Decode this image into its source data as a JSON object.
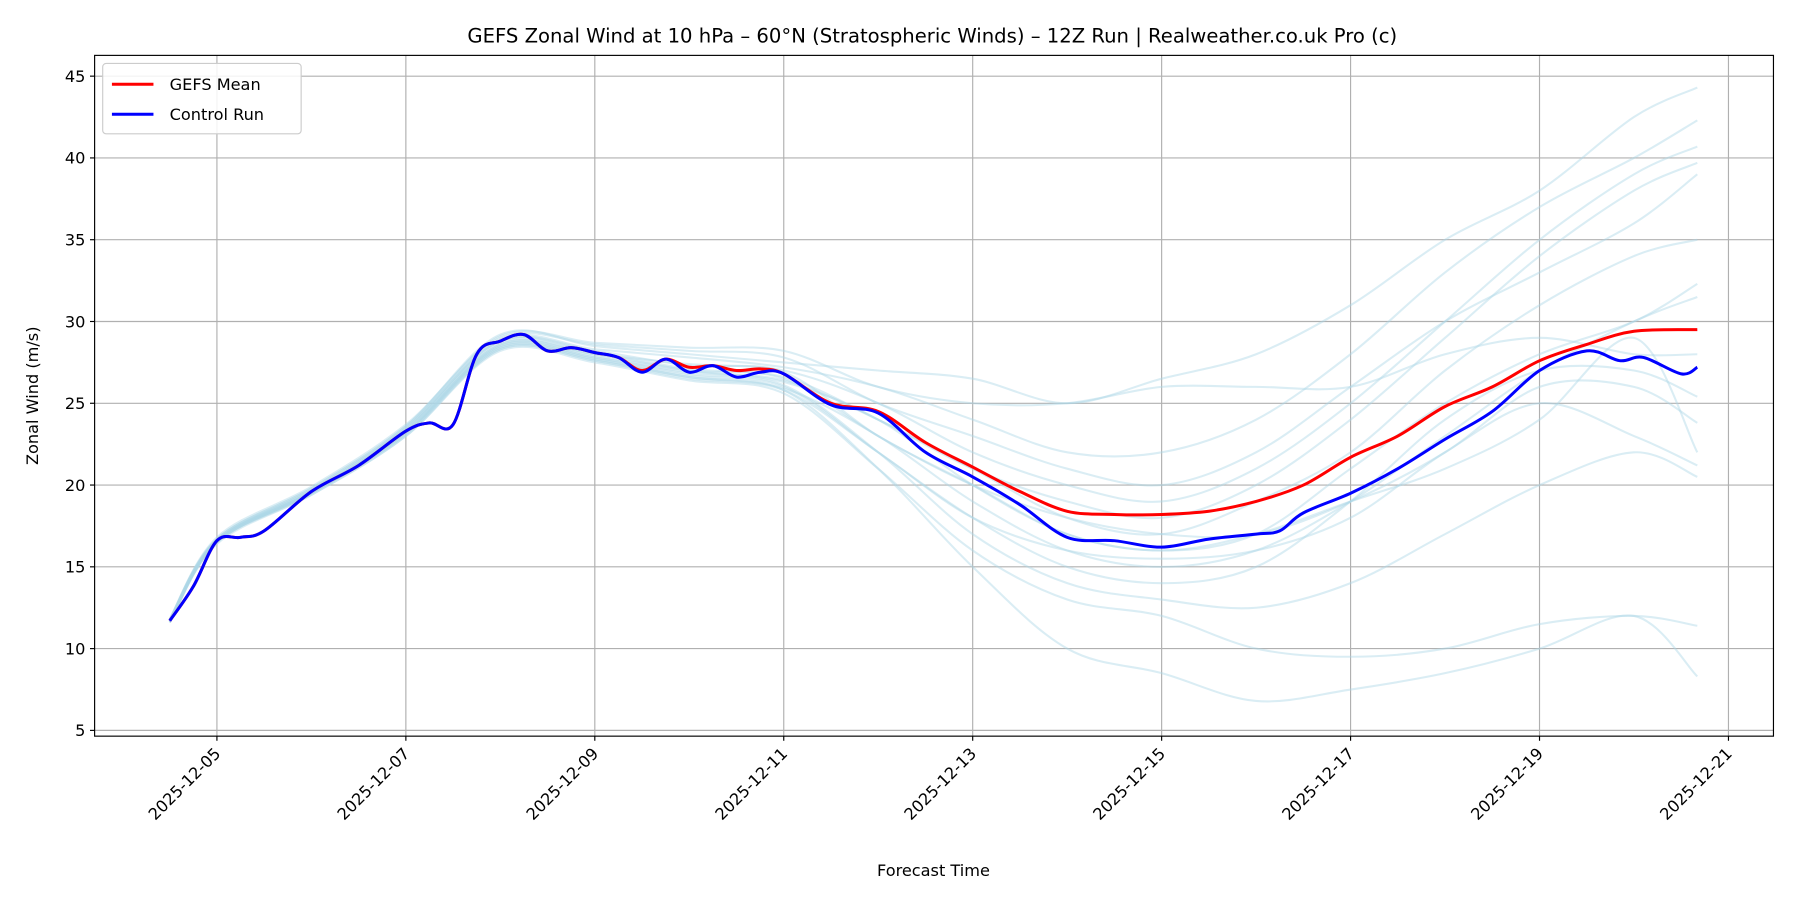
{
  "chart_data": {
    "type": "line",
    "title": "GEFS Zonal Wind at 10 hPa – 60°N (Stratospheric Winds) – 12Z Run | Realweather.co.uk Pro (c)",
    "xlabel": "Forecast Time",
    "ylabel": "Zonal Wind (m/s)",
    "ylim": [
      4.5,
      46.2
    ],
    "xlim_day_of_dec": [
      3.85,
      21.25
    ],
    "grid": true,
    "legend_position": "top-left",
    "x_unit": "day of December 2025 (UTC, fractional)",
    "y_ticks": [
      5,
      10,
      15,
      20,
      25,
      30,
      35,
      40,
      45
    ],
    "x_ticks": [
      {
        "day": 5,
        "label": "2025-12-05"
      },
      {
        "day": 7,
        "label": "2025-12-07"
      },
      {
        "day": 9,
        "label": "2025-12-09"
      },
      {
        "day": 11,
        "label": "2025-12-11"
      },
      {
        "day": 13,
        "label": "2025-12-13"
      },
      {
        "day": 15,
        "label": "2025-12-15"
      },
      {
        "day": 17,
        "label": "2025-12-17"
      },
      {
        "day": 19,
        "label": "2025-12-19"
      },
      {
        "day": 21,
        "label": "2025-12-21"
      }
    ],
    "series": [
      {
        "name": "GEFS Mean",
        "color": "#ff0000",
        "x": [
          4.5,
          4.75,
          5,
          5.25,
          5.5,
          6,
          6.5,
          7,
          7.25,
          7.5,
          7.75,
          8,
          8.25,
          8.5,
          8.75,
          9,
          9.25,
          9.5,
          9.75,
          10,
          10.25,
          10.5,
          10.75,
          11,
          11.5,
          12,
          12.5,
          13,
          13.5,
          14,
          14.5,
          15,
          15.5,
          16,
          16.5,
          17,
          17.5,
          18,
          18.5,
          19,
          19.5,
          20,
          20.67
        ],
        "y": [
          11.7,
          13.8,
          16.6,
          16.8,
          17.2,
          19.6,
          21.2,
          23.3,
          23.8,
          23.7,
          28.0,
          28.8,
          29.2,
          28.2,
          28.4,
          28.1,
          27.8,
          27.0,
          27.7,
          27.2,
          27.3,
          27.0,
          27.1,
          26.8,
          25.0,
          24.5,
          22.6,
          21.1,
          19.6,
          18.4,
          18.2,
          18.2,
          18.4,
          19.0,
          20.0,
          21.7,
          23.0,
          24.8,
          26.0,
          27.6,
          28.6,
          29.4,
          29.5
        ]
      },
      {
        "name": "Control Run",
        "color": "#0000ff",
        "x": [
          4.5,
          4.75,
          5,
          5.25,
          5.5,
          6,
          6.5,
          7,
          7.25,
          7.5,
          7.75,
          8,
          8.25,
          8.5,
          8.75,
          9,
          9.25,
          9.5,
          9.75,
          10,
          10.25,
          10.5,
          10.75,
          11,
          11.5,
          12,
          12.5,
          13,
          13.5,
          14,
          14.5,
          15,
          15.5,
          16,
          16.25,
          16.5,
          17,
          17.5,
          18,
          18.5,
          19,
          19.5,
          19.85,
          20.1,
          20.5,
          20.67
        ],
        "y": [
          11.7,
          13.8,
          16.6,
          16.8,
          17.2,
          19.6,
          21.2,
          23.3,
          23.8,
          23.7,
          28.0,
          28.8,
          29.2,
          28.2,
          28.4,
          28.1,
          27.8,
          26.9,
          27.7,
          26.9,
          27.3,
          26.6,
          26.9,
          26.8,
          24.9,
          24.4,
          22.0,
          20.5,
          18.8,
          16.8,
          16.6,
          16.2,
          16.7,
          17.0,
          17.2,
          18.3,
          19.5,
          21.0,
          22.8,
          24.5,
          27.0,
          28.2,
          27.6,
          27.8,
          26.8,
          27.2
        ]
      }
    ],
    "ensemble_members": {
      "color": "#add8e6",
      "x": [
        4.5,
        5,
        6,
        7,
        8,
        9,
        10,
        11,
        12,
        13,
        14,
        15,
        16,
        17,
        18,
        19,
        20,
        20.67
      ],
      "members": [
        [
          11.8,
          16.7,
          19.8,
          23.6,
          29.2,
          28.5,
          28.0,
          27.5,
          27.0,
          26.5,
          25.0,
          26.5,
          28.0,
          31.0,
          35.0,
          38.0,
          42.5,
          44.3
        ],
        [
          11.7,
          16.6,
          19.6,
          23.4,
          28.9,
          28.3,
          27.8,
          27.2,
          26.0,
          24.0,
          22.0,
          22.0,
          24.0,
          28.0,
          33.0,
          37.0,
          40.0,
          42.3
        ],
        [
          11.6,
          16.5,
          19.5,
          23.2,
          28.6,
          28.0,
          27.4,
          27.0,
          25.0,
          22.0,
          20.0,
          19.0,
          21.0,
          25.0,
          30.0,
          35.0,
          39.0,
          40.7
        ],
        [
          11.7,
          16.6,
          19.7,
          23.5,
          28.8,
          28.1,
          27.1,
          26.6,
          24.0,
          21.0,
          19.0,
          18.0,
          20.0,
          24.0,
          29.0,
          34.0,
          38.0,
          39.7
        ],
        [
          11.8,
          16.8,
          19.9,
          23.7,
          29.0,
          28.6,
          28.2,
          27.8,
          25.0,
          23.0,
          21.0,
          20.0,
          22.0,
          26.0,
          30.0,
          33.0,
          36.0,
          39.0
        ],
        [
          11.6,
          16.5,
          19.5,
          23.1,
          28.5,
          27.8,
          26.9,
          26.4,
          24.0,
          21.0,
          18.0,
          17.0,
          19.0,
          22.0,
          27.0,
          31.0,
          34.0,
          35.0
        ],
        [
          11.7,
          16.6,
          19.6,
          23.3,
          28.7,
          28.0,
          27.0,
          26.3,
          24.0,
          20.0,
          17.0,
          16.0,
          17.0,
          21.0,
          25.0,
          28.0,
          30.0,
          32.3
        ],
        [
          11.6,
          16.4,
          19.4,
          23.0,
          28.3,
          27.6,
          26.6,
          25.9,
          23.0,
          19.0,
          16.0,
          15.0,
          16.0,
          19.0,
          23.0,
          27.0,
          30.0,
          31.5
        ],
        [
          11.8,
          16.7,
          19.8,
          23.6,
          29.1,
          28.7,
          28.4,
          28.2,
          26.0,
          25.0,
          25.0,
          26.0,
          26.0,
          26.0,
          28.0,
          29.0,
          28.0,
          28.0
        ],
        [
          11.6,
          16.5,
          19.5,
          23.2,
          28.4,
          27.7,
          26.7,
          26.0,
          22.0,
          18.0,
          15.0,
          14.0,
          15.0,
          19.0,
          24.0,
          27.0,
          27.0,
          25.4
        ],
        [
          11.7,
          16.6,
          19.6,
          23.4,
          28.6,
          27.9,
          27.0,
          26.5,
          23.0,
          20.0,
          18.0,
          17.0,
          17.0,
          19.0,
          22.0,
          26.0,
          26.0,
          23.8
        ],
        [
          11.6,
          16.5,
          19.5,
          23.1,
          28.3,
          27.6,
          26.5,
          25.8,
          22.0,
          18.0,
          16.0,
          15.5,
          16.0,
          18.0,
          22.0,
          25.0,
          23.0,
          21.2
        ],
        [
          11.7,
          16.6,
          19.6,
          23.3,
          28.5,
          27.8,
          26.8,
          26.1,
          22.0,
          17.0,
          14.0,
          13.0,
          12.5,
          14.0,
          17.0,
          20.0,
          22.0,
          20.5
        ],
        [
          11.6,
          16.5,
          19.4,
          23.0,
          28.2,
          27.5,
          26.4,
          25.6,
          21.0,
          16.0,
          13.0,
          12.0,
          10.0,
          9.5,
          10.0,
          11.5,
          12.0,
          11.4
        ],
        [
          11.7,
          16.6,
          19.5,
          23.2,
          28.4,
          27.7,
          26.6,
          25.8,
          21.0,
          15.0,
          10.0,
          8.5,
          6.8,
          7.5,
          8.5,
          10.0,
          12.0,
          8.3
        ],
        [
          11.8,
          16.7,
          19.7,
          23.5,
          28.8,
          28.2,
          27.3,
          26.9,
          23.0,
          20.0,
          17.0,
          16.0,
          17.0,
          19.0,
          21.0,
          24.0,
          29.0,
          22.0
        ]
      ]
    }
  }
}
